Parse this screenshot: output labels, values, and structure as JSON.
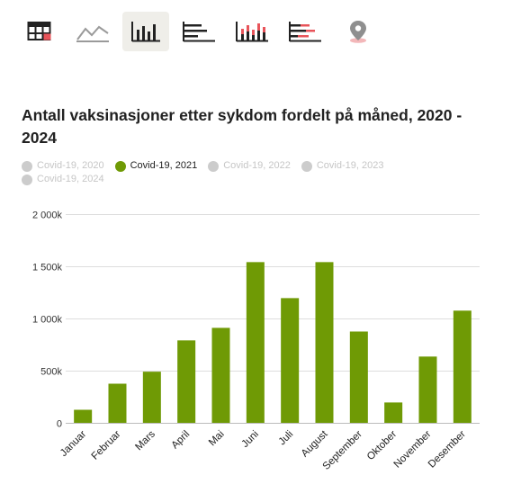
{
  "toolbar": {
    "tools": [
      {
        "icon": "table-icon",
        "active": false
      },
      {
        "icon": "line-chart-icon",
        "active": false
      },
      {
        "icon": "column-chart-icon",
        "active": true
      },
      {
        "icon": "bar-chart-icon",
        "active": false
      },
      {
        "icon": "stacked-column-chart-icon",
        "active": false
      },
      {
        "icon": "stacked-bar-chart-icon",
        "active": false
      },
      {
        "icon": "map-pin-icon",
        "active": false
      }
    ]
  },
  "legend": [
    {
      "label": "Covid-19, 2020",
      "active": false
    },
    {
      "label": "Covid-19, 2021",
      "active": true
    },
    {
      "label": "Covid-19, 2022",
      "active": false
    },
    {
      "label": "Covid-19, 2023",
      "active": false
    },
    {
      "label": "Covid-19, 2024",
      "active": false
    }
  ],
  "colors": {
    "bar": "#6f9a05",
    "inactive_dot": "#cccccc",
    "grid": "#dddddd",
    "accent_red": "#e8545a"
  },
  "chart_data": {
    "type": "bar",
    "title": "Antall vaksinasjoner etter sykdom fordelt på måned, 2020 - 2024",
    "xlabel": "",
    "ylabel": "",
    "categories": [
      "Januar",
      "Februar",
      "Mars",
      "April",
      "Mai",
      "Juni",
      "Juli",
      "August",
      "September",
      "Oktober",
      "November",
      "Desember"
    ],
    "series": [
      {
        "name": "Covid-19, 2021",
        "values": [
          125000,
          375000,
          490000,
          790000,
          910000,
          1540000,
          1195000,
          1540000,
          875000,
          195000,
          635000,
          1075000
        ]
      }
    ],
    "ylim": [
      0,
      2000000
    ],
    "yticks": [
      0,
      500000,
      1000000,
      1500000,
      2000000
    ],
    "ytick_labels": [
      "0",
      "500k",
      "1 000k",
      "1 500k",
      "2 000k"
    ],
    "grid": true,
    "legend_position": "top-left"
  }
}
